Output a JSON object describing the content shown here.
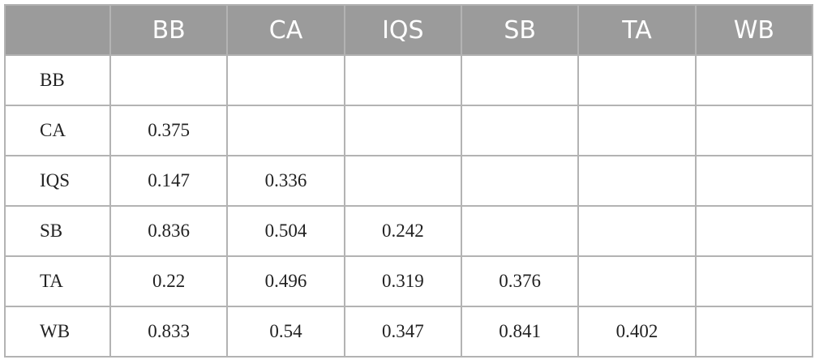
{
  "table": {
    "columns": [
      "BB",
      "CA",
      "IQS",
      "SB",
      "TA",
      "WB"
    ],
    "rows": [
      {
        "label": "BB",
        "values": []
      },
      {
        "label": "CA",
        "values": [
          0.375
        ]
      },
      {
        "label": "IQS",
        "values": [
          0.147,
          0.336
        ]
      },
      {
        "label": "SB",
        "values": [
          0.836,
          0.504,
          0.242
        ]
      },
      {
        "label": "TA",
        "values": [
          0.22,
          0.496,
          0.319,
          0.376
        ]
      },
      {
        "label": "WB",
        "values": [
          0.833,
          0.54,
          0.347,
          0.841,
          0.402
        ]
      }
    ]
  }
}
